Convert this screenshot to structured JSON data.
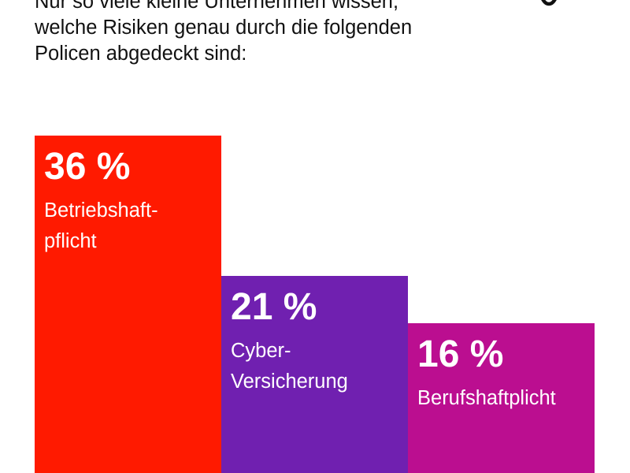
{
  "headline": {
    "line1": "Nur so viele kleine Unternehmen wissen,",
    "line2": "welche Risiken genau durch die folgenden",
    "line3": "Policen abgedeckt sind:"
  },
  "logo": {
    "icon": "brand-ring-icon"
  },
  "chart_data": {
    "type": "bar",
    "title": "Nur so viele kleine Unternehmen wissen, welche Risiken genau durch die folgenden Policen abgedeckt sind:",
    "xlabel": "",
    "ylabel": "",
    "ylim": [
      0,
      36
    ],
    "categories": [
      "Betriebshaft-\npflicht",
      "Cyber-\nVersicherung",
      "Berufshaftplicht"
    ],
    "values": [
      36,
      21,
      16
    ],
    "value_labels": [
      "36 %",
      "21 %",
      "16 %"
    ],
    "colors": [
      "#FF1A00",
      "#7020B0",
      "#BB0E90"
    ]
  }
}
